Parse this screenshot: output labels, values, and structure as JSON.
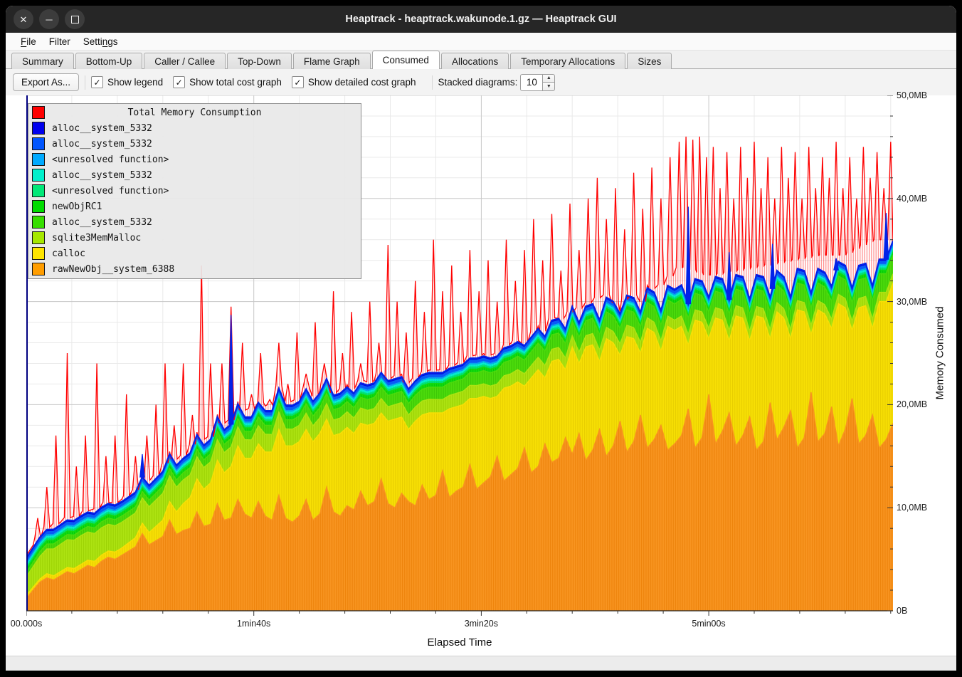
{
  "window": {
    "title": "Heaptrack - heaptrack.wakunode.1.gz — Heaptrack GUI",
    "buttons": [
      "close",
      "minimize",
      "maximize"
    ]
  },
  "menu": {
    "items": [
      {
        "label": "File",
        "accel_index": 0
      },
      {
        "label": "Filter",
        "accel_index": -1
      },
      {
        "label": "Settings",
        "accel_index": 5
      }
    ]
  },
  "tabs": {
    "active_index": 5,
    "items": [
      "Summary",
      "Bottom-Up",
      "Caller / Callee",
      "Top-Down",
      "Flame Graph",
      "Consumed",
      "Allocations",
      "Temporary Allocations",
      "Sizes"
    ]
  },
  "toolbar": {
    "export_label": "Export As...",
    "checkboxes": [
      {
        "label": "Show legend",
        "checked": true
      },
      {
        "label": "Show total cost graph",
        "checked": true
      },
      {
        "label": "Show detailed cost graph",
        "checked": true
      }
    ],
    "stacked_label": "Stacked diagrams:",
    "stacked_value": "10"
  },
  "chart_data": {
    "type": "area",
    "subtype": "stacked-area-with-total-line",
    "xlabel": "Elapsed Time",
    "ylabel": "Memory Consumed",
    "x_unit": "seconds",
    "x_max": 381,
    "y_max_mb": 50,
    "sample_step_s": 3,
    "x_ticks": [
      {
        "s": 0,
        "label": "00.000s"
      },
      {
        "s": 100,
        "label": "1min40s"
      },
      {
        "s": 200,
        "label": "3min20s"
      },
      {
        "s": 300,
        "label": "5min00s"
      }
    ],
    "x_minor_step_s": 20,
    "y_ticks": [
      {
        "mb": 0,
        "label": "0B"
      },
      {
        "mb": 10,
        "label": "10,0MB"
      },
      {
        "mb": 20,
        "label": "20,0MB"
      },
      {
        "mb": 30,
        "label": "30,0MB"
      },
      {
        "mb": 40,
        "label": "40,0MB"
      },
      {
        "mb": 50,
        "label": "50,0MB"
      }
    ],
    "y_minor_step_mb": 2,
    "grid": {
      "minor_color": "#e9e9e9",
      "major_color": "#c7c7c7",
      "left_border_color": "#000080"
    },
    "top_line_color": "#0222e8",
    "bands": [
      {
        "name": "rawNewObj__system_6388",
        "swatch": "#FF9D00",
        "fill": "#F89420",
        "stripe": "#ED830B",
        "values": [
          1.2,
          2.0,
          2.8,
          3.2,
          3.0,
          3.4,
          3.8,
          3.6,
          4.0,
          4.4,
          4.2,
          4.8,
          5.2,
          5.0,
          5.4,
          5.8,
          6.2,
          7.5,
          6.4,
          6.8,
          7.2,
          8.8,
          7.4,
          7.8,
          8.0,
          9.6,
          8.2,
          8.4,
          10.4,
          8.8,
          9.0,
          10.8,
          9.4,
          9.0,
          10.6,
          9.2,
          8.8,
          11.2,
          9.0,
          8.6,
          9.2,
          10.8,
          8.8,
          9.4,
          12.0,
          9.6,
          9.2,
          10.2,
          9.8,
          11.6,
          10.2,
          10.6,
          12.8,
          10.4,
          10.0,
          11.4,
          10.6,
          10.2,
          12.2,
          10.8,
          11.2,
          13.6,
          11.0,
          11.6,
          12.0,
          14.2,
          11.8,
          12.4,
          13.0,
          15.0,
          12.6,
          13.2,
          13.8,
          15.8,
          13.4,
          14.0,
          16.2,
          14.4,
          14.8,
          16.8,
          15.2,
          17.2,
          14.6,
          15.6,
          17.6,
          15.0,
          16.0,
          18.4,
          15.4,
          16.4,
          19.0,
          15.8,
          16.6,
          18.0,
          15.6,
          16.2,
          17.0,
          19.6,
          15.8,
          16.8,
          21.0,
          16.2,
          17.4,
          19.2,
          16.0,
          17.0,
          18.8,
          15.6,
          16.4,
          20.2,
          16.6,
          17.8,
          19.4,
          15.8,
          16.8,
          21.2,
          16.4,
          17.2,
          19.8,
          16.0,
          17.6,
          20.6,
          16.2,
          17.0,
          19.0,
          15.8,
          16.6,
          18.2
        ]
      },
      {
        "name": "calloc",
        "swatch": "#FFE500",
        "fill": "#F7DF05",
        "stripe": "#E8CE00",
        "values": [
          0.3,
          0.3,
          0.3,
          0.4,
          0.4,
          0.4,
          0.4,
          0.5,
          0.5,
          0.5,
          0.6,
          0.6,
          0.6,
          0.7,
          0.7,
          0.8,
          0.9,
          1.0,
          1.2,
          1.4,
          1.6,
          1.8,
          2.2,
          2.6,
          3.0,
          3.2,
          3.6,
          4.0,
          4.2,
          4.6,
          5.0,
          5.2,
          5.4,
          5.8,
          5.6,
          6.2,
          6.6,
          6.4,
          7.0,
          7.4,
          7.2,
          6.8,
          7.6,
          7.8,
          6.6,
          7.4,
          8.0,
          7.6,
          7.4,
          6.6,
          7.8,
          7.6,
          6.4,
          8.0,
          8.6,
          7.4,
          7.0,
          8.2,
          6.8,
          8.4,
          8.0,
          5.6,
          8.6,
          8.2,
          8.0,
          6.4,
          8.8,
          8.4,
          7.6,
          5.8,
          9.0,
          8.6,
          8.4,
          6.0,
          9.2,
          9.4,
          6.4,
          9.8,
          9.6,
          6.6,
          10.4,
          6.8,
          11.0,
          10.2,
          6.6,
          11.4,
          10.0,
          6.4,
          11.2,
          10.0,
          6.0,
          11.6,
          10.4,
          7.2,
          12.0,
          11.0,
          10.6,
          6.2,
          12.4,
          11.2,
          5.4,
          12.2,
          10.8,
          7.0,
          12.6,
          11.4,
          7.4,
          13.0,
          12.0,
          6.2,
          12.4,
          10.6,
          7.0,
          13.4,
          12.2,
          5.6,
          12.8,
          11.6,
          7.6,
          13.8,
          11.8,
          6.6,
          13.2,
          12.6,
          8.4,
          14.2,
          13.4,
          13.6
        ]
      },
      {
        "name": "sqlite3MemMalloc",
        "swatch": "#A6E800",
        "fill": "#ADE312",
        "stripe": "#9CD203",
        "step_s": 12,
        "values": [
          1.8,
          2.6,
          2.8,
          2.6,
          2.4,
          2.6,
          2.2,
          2.0,
          1.8,
          1.7,
          1.6,
          1.5,
          1.5,
          1.4,
          1.4,
          1.3,
          1.3,
          1.2,
          1.2,
          1.2,
          1.1,
          1.1,
          1.1,
          1.0,
          1.0,
          1.0,
          1.0,
          0.9,
          0.9,
          0.9,
          0.9,
          0.9
        ]
      },
      {
        "name": "alloc__system_5332",
        "swatch": "#36DE00",
        "fill": "#4CDB0C",
        "stripe": "#3BC705",
        "step_s": 12,
        "values": [
          0.4,
          0.5,
          0.5,
          0.6,
          0.6,
          0.7,
          0.7,
          0.8,
          0.8,
          0.9,
          0.9,
          1.0,
          1.0,
          1.1,
          1.1,
          1.2,
          1.2,
          1.3,
          1.3,
          1.4,
          1.4,
          1.5,
          1.5,
          1.5,
          1.6,
          1.6,
          1.6,
          1.7,
          1.7,
          1.7,
          1.8,
          1.8
        ]
      },
      {
        "name": "newObjRC1",
        "swatch": "#00DD00",
        "fill": "#12DB12",
        "stripe": "#04C804",
        "thickness": 0.35
      },
      {
        "name": "<unresolved function>",
        "swatch": "#00E878",
        "fill": "#02E476",
        "stripe": "#00CE66",
        "thickness": 0.2
      },
      {
        "name": "alloc__system_5332",
        "swatch": "#00F0CC",
        "fill": "#06EDCF",
        "stripe": "#00D9BB",
        "thickness": 0.2
      },
      {
        "name": "<unresolved function>",
        "swatch": "#00AAFF",
        "fill": "#08A9EC",
        "stripe": "#0192D4",
        "thickness": 0.15
      },
      {
        "name": "alloc__system_5332",
        "swatch": "#0055FF",
        "fill": "#0A5BF7",
        "stripe": "#0A5BF7",
        "thickness": 0.3
      },
      {
        "name": "alloc__system_5332",
        "swatch": "#0000EE",
        "fill": "#0504DE",
        "stripe": "#0504DE",
        "thickness": 0.2
      }
    ],
    "blue_spikes": [
      [
        51,
        15.2
      ],
      [
        90,
        28.7
      ],
      [
        291,
        39.2
      ],
      [
        309,
        34.8
      ],
      [
        328,
        35.6
      ],
      [
        356,
        34.2
      ],
      [
        378,
        38.6
      ]
    ],
    "total": {
      "name": "Total Memory Consumption",
      "color": "#FF0000",
      "swatch": "#FF0000",
      "hatch": "rgba(255,0,0,0.45)",
      "base_step_s": 12,
      "base": [
        4.5,
        8.5,
        8.0,
        8.0,
        9.5,
        11.0,
        14.5,
        17.5,
        19.5,
        20.0,
        20.5,
        21.0,
        21.5,
        22.5,
        20.5,
        23.5,
        23.0,
        24.0,
        23.0,
        27.5,
        29.0,
        30.5,
        28.5,
        31.0,
        33.5,
        32.5,
        33.0,
        33.5,
        34.0,
        34.5,
        34.5,
        36.0
      ],
      "spikes": [
        [
          5,
          9
        ],
        [
          9,
          12
        ],
        [
          13,
          17
        ],
        [
          18,
          25
        ],
        [
          22,
          14
        ],
        [
          26,
          17
        ],
        [
          31,
          24
        ],
        [
          35,
          15
        ],
        [
          39,
          17
        ],
        [
          44,
          21
        ],
        [
          48,
          15
        ],
        [
          53,
          17
        ],
        [
          57,
          20
        ],
        [
          61,
          24
        ],
        [
          65,
          18
        ],
        [
          69,
          24
        ],
        [
          73,
          19
        ],
        [
          77,
          33.5
        ],
        [
          81,
          24
        ],
        [
          86,
          24
        ],
        [
          90,
          29.5
        ],
        [
          95,
          26
        ],
        [
          99,
          21
        ],
        [
          103,
          25
        ],
        [
          107,
          20.5
        ],
        [
          111,
          26
        ],
        [
          115,
          22
        ],
        [
          119,
          27
        ],
        [
          123,
          23
        ],
        [
          127,
          28
        ],
        [
          131,
          24
        ],
        [
          135,
          31
        ],
        [
          139,
          25
        ],
        [
          143,
          29
        ],
        [
          147,
          24
        ],
        [
          151,
          30
        ],
        [
          155,
          26
        ],
        [
          159,
          35.5
        ],
        [
          163,
          30
        ],
        [
          167,
          27
        ],
        [
          171,
          32
        ],
        [
          175,
          29
        ],
        [
          179,
          36
        ],
        [
          183,
          31
        ],
        [
          187,
          33.5
        ],
        [
          191,
          29
        ],
        [
          195,
          35
        ],
        [
          199,
          31
        ],
        [
          203,
          34
        ],
        [
          207,
          30
        ],
        [
          211,
          36
        ],
        [
          215,
          32
        ],
        [
          219,
          35
        ],
        [
          223,
          38
        ],
        [
          227,
          34
        ],
        [
          231,
          38.5
        ],
        [
          235,
          33
        ],
        [
          239,
          39.5
        ],
        [
          243,
          35
        ],
        [
          247,
          40
        ],
        [
          251,
          42
        ],
        [
          255,
          38
        ],
        [
          259,
          41
        ],
        [
          263,
          37
        ],
        [
          267,
          42.5
        ],
        [
          271,
          39
        ],
        [
          275,
          43
        ],
        [
          279,
          40
        ],
        [
          283,
          44
        ],
        [
          287,
          45.5
        ],
        [
          290,
          46
        ],
        [
          293,
          45.7
        ],
        [
          296,
          46
        ],
        [
          299,
          44
        ],
        [
          302,
          45
        ],
        [
          305,
          41
        ],
        [
          308,
          44.5
        ],
        [
          311,
          40
        ],
        [
          314,
          45
        ],
        [
          317,
          42
        ],
        [
          320,
          45.5
        ],
        [
          323,
          41
        ],
        [
          326,
          44
        ],
        [
          329,
          40
        ],
        [
          332,
          45
        ],
        [
          335,
          42
        ],
        [
          338,
          44.5
        ],
        [
          341,
          40
        ],
        [
          344,
          45
        ],
        [
          347,
          41
        ],
        [
          350,
          44
        ],
        [
          353,
          42
        ],
        [
          356,
          45.5
        ],
        [
          359,
          41
        ],
        [
          362,
          44
        ],
        [
          365,
          40
        ],
        [
          368,
          45
        ],
        [
          371,
          42
        ],
        [
          374,
          44.5
        ],
        [
          377,
          41
        ],
        [
          380,
          45.5
        ]
      ]
    }
  }
}
